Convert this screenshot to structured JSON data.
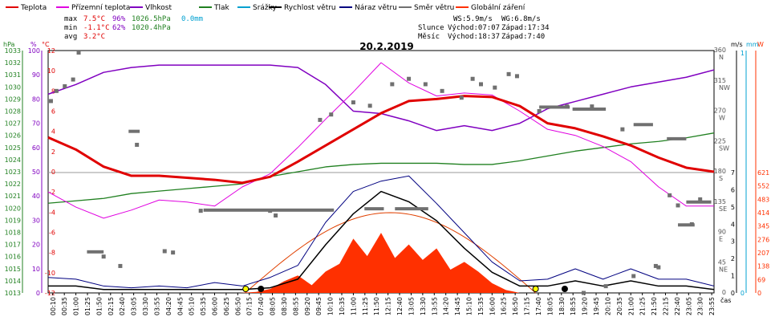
{
  "chart_data": {
    "type": "line",
    "title": "20.2.2019",
    "legend": [
      {
        "name": "Teplota",
        "color": "#e00000"
      },
      {
        "name": "Přízemní teplota",
        "color": "#e000e0"
      },
      {
        "name": "Vlhkost",
        "color": "#8000c0"
      },
      {
        "name": "Tlak",
        "color": "#208020"
      },
      {
        "name": "Srážky",
        "color": "#00a0d0"
      },
      {
        "name": "Rychlost větru",
        "color": "#000000"
      },
      {
        "name": "Náraz větru",
        "color": "#000080"
      },
      {
        "name": "Směr větru",
        "color": "#707070"
      },
      {
        "name": "Globální záření",
        "color": "#ff3000"
      }
    ],
    "stats": {
      "max_label": "max",
      "max_temp": "7.5°C",
      "max_hum": "96%",
      "max_press": "1026.5hPa",
      "max_rain": "0.0mm",
      "min_label": "min",
      "min_temp": "-1.1°C",
      "min_hum": "62%",
      "min_press": "1020.4hPa",
      "avg_label": "avg",
      "avg_temp": "3.2°C"
    },
    "info": {
      "ws": "WS:5.9m/s",
      "wg": "WG:6.8m/s",
      "sun_label": "Slunce",
      "sun_rise": "Východ:07:07",
      "sun_set": "Západ:17:34",
      "moon_label": "Měsíc",
      "moon_rise": "Východ:18:37",
      "moon_set": "Západ:7:40"
    },
    "axes": {
      "hpa": {
        "unit": "hPa",
        "ticks": [
          1013,
          1014,
          1015,
          1016,
          1017,
          1018,
          1019,
          1020,
          1021,
          1022,
          1023,
          1024,
          1025,
          1026,
          1027,
          1028,
          1029,
          1030,
          1031,
          1032,
          1033
        ]
      },
      "pct": {
        "unit": "%",
        "ticks": [
          0,
          10,
          20,
          30,
          40,
          50,
          60,
          70,
          80,
          90,
          100
        ]
      },
      "temp": {
        "unit": "°C",
        "ticks": [
          -12,
          -10,
          -8,
          -6,
          -4,
          -2,
          0,
          2,
          4,
          6,
          8,
          10,
          12
        ]
      },
      "dir": {
        "ticks": [
          {
            "v": 360,
            "lab": "N"
          },
          {
            "v": 315,
            "lab": "NW"
          },
          {
            "v": 270,
            "lab": "W"
          },
          {
            "v": 225,
            "lab": "SW"
          },
          {
            "v": 180,
            "lab": "S"
          },
          {
            "v": 135,
            "lab": "SE"
          },
          {
            "v": 90,
            "lab": "E"
          },
          {
            "v": 45,
            "lab": "NE"
          },
          {
            "v": 0,
            "lab": ""
          }
        ]
      },
      "ms": {
        "unit": "m/s",
        "ticks": [
          0,
          1,
          2,
          3,
          4,
          5,
          6,
          7
        ]
      },
      "mm": {
        "unit": "mm",
        "ticks": [
          0,
          1
        ]
      },
      "wm2": {
        "unit": "W",
        "ticks": [
          0,
          69,
          138,
          207,
          276,
          345,
          414,
          483,
          552,
          621
        ]
      },
      "time_unit": "čas",
      "xlabels": [
        "00:10",
        "00:35",
        "01:00",
        "01:25",
        "01:50",
        "02:15",
        "02:40",
        "03:05",
        "03:30",
        "03:55",
        "04:20",
        "04:45",
        "05:10",
        "05:35",
        "06:00",
        "06:25",
        "06:50",
        "07:15",
        "07:40",
        "08:05",
        "08:30",
        "08:55",
        "09:20",
        "09:45",
        "10:10",
        "10:35",
        "11:00",
        "11:25",
        "11:50",
        "12:15",
        "12:40",
        "13:05",
        "13:30",
        "13:55",
        "14:20",
        "14:45",
        "15:10",
        "15:35",
        "16:00",
        "16:25",
        "16:50",
        "17:15",
        "17:40",
        "18:05",
        "18:30",
        "18:55",
        "19:20",
        "19:45",
        "20:10",
        "20:35",
        "21:00",
        "21:25",
        "21:50",
        "22:15",
        "22:40",
        "23:05",
        "23:30",
        "23:55"
      ]
    },
    "series": [
      {
        "name": "Teplota",
        "unit": "°C",
        "x": [
          0,
          1,
          2,
          3,
          4,
          5,
          6,
          7,
          8,
          9,
          10,
          11,
          12,
          13,
          14,
          15,
          16,
          17,
          18,
          19,
          20,
          21,
          22,
          23,
          24
        ],
        "y": [
          3.4,
          2.2,
          0.5,
          -0.4,
          -0.4,
          -0.6,
          -0.8,
          -1.1,
          -0.5,
          1.0,
          2.6,
          4.2,
          5.8,
          7.0,
          7.2,
          7.5,
          7.4,
          6.5,
          4.8,
          4.3,
          3.5,
          2.6,
          1.4,
          0.4,
          0.0
        ]
      },
      {
        "name": "Přízemní teplota",
        "unit": "°C",
        "x": [
          0,
          1,
          2,
          3,
          4,
          5,
          6,
          7,
          8,
          9,
          10,
          11,
          12,
          13,
          14,
          15,
          16,
          17,
          18,
          19,
          20,
          21,
          22,
          23,
          24
        ],
        "y": [
          -2.0,
          -3.5,
          -4.6,
          -3.8,
          -2.8,
          -3.0,
          -3.4,
          -1.5,
          -0.2,
          2.4,
          5.2,
          7.9,
          10.8,
          8.8,
          7.5,
          7.8,
          7.6,
          6.0,
          4.2,
          3.6,
          2.5,
          1.0,
          -1.5,
          -3.4,
          -3.4
        ]
      },
      {
        "name": "Vlhkost",
        "unit": "%",
        "x": [
          0,
          1,
          2,
          3,
          4,
          5,
          6,
          7,
          8,
          9,
          10,
          11,
          12,
          13,
          14,
          15,
          16,
          17,
          18,
          19,
          20,
          21,
          22,
          23,
          24
        ],
        "y": [
          82,
          86,
          91,
          93,
          94,
          94,
          94,
          94,
          94,
          93,
          86,
          75,
          74,
          71,
          67,
          69,
          67,
          70,
          76,
          79,
          82,
          85,
          87,
          89,
          92
        ]
      },
      {
        "name": "Tlak",
        "unit": "hPa",
        "x": [
          0,
          1,
          2,
          3,
          4,
          5,
          6,
          7,
          8,
          9,
          10,
          11,
          12,
          13,
          14,
          15,
          16,
          17,
          18,
          19,
          20,
          21,
          22,
          23,
          24
        ],
        "y": [
          1020.4,
          1020.6,
          1020.8,
          1021.2,
          1021.4,
          1021.6,
          1021.8,
          1022.0,
          1022.6,
          1023.0,
          1023.4,
          1023.6,
          1023.7,
          1023.7,
          1023.7,
          1023.6,
          1023.6,
          1023.9,
          1024.3,
          1024.7,
          1025.0,
          1025.3,
          1025.5,
          1025.8,
          1026.2
        ]
      },
      {
        "name": "Globální záření",
        "unit": "W/m2",
        "x": [
          6.9,
          7.5,
          8,
          8.5,
          9,
          9.5,
          10,
          10.5,
          11,
          11.5,
          12,
          12.5,
          13,
          13.5,
          14,
          14.5,
          15,
          15.5,
          16,
          16.5,
          17
        ],
        "y": [
          0,
          5,
          20,
          60,
          90,
          40,
          110,
          150,
          280,
          190,
          310,
          180,
          250,
          170,
          230,
          120,
          160,
          110,
          50,
          15,
          0
        ]
      },
      {
        "name": "Náraz větru",
        "unit": "m/s",
        "x": [
          0,
          1,
          2,
          3,
          4,
          5,
          6,
          7,
          8,
          9,
          10,
          11,
          12,
          13,
          14,
          15,
          16,
          17,
          18,
          19,
          20,
          21,
          22,
          23,
          24
        ],
        "y": [
          0.9,
          0.8,
          0.4,
          0.3,
          0.4,
          0.3,
          0.6,
          0.4,
          0.9,
          1.6,
          4.1,
          5.9,
          6.5,
          6.8,
          5.2,
          3.5,
          1.8,
          0.7,
          0.8,
          1.4,
          0.8,
          1.4,
          0.8,
          0.8,
          0.4
        ]
      },
      {
        "name": "Rychlost větru",
        "unit": "m/s",
        "x": [
          0,
          1,
          2,
          3,
          4,
          5,
          6,
          7,
          8,
          9,
          10,
          11,
          12,
          13,
          14,
          15,
          16,
          17,
          18,
          19,
          20,
          21,
          22,
          23,
          24
        ],
        "y": [
          0.4,
          0.4,
          0.2,
          0.2,
          0.2,
          0.2,
          0.2,
          0.2,
          0.3,
          0.8,
          2.8,
          4.6,
          5.9,
          5.3,
          4.2,
          2.6,
          1.2,
          0.4,
          0.4,
          0.7,
          0.4,
          0.7,
          0.4,
          0.4,
          0.2
        ]
      }
    ],
    "wind_dir_points": [
      {
        "x": 0.1,
        "y": 285
      },
      {
        "x": 0.3,
        "y": 300
      },
      {
        "x": 0.6,
        "y": 307
      },
      {
        "x": 0.9,
        "y": 317
      },
      {
        "x": 1.1,
        "y": 357
      },
      {
        "x": 2.0,
        "y": 54
      },
      {
        "x": 2.6,
        "y": 40
      },
      {
        "x": 3.2,
        "y": 220
      },
      {
        "x": 4.2,
        "y": 62
      },
      {
        "x": 4.5,
        "y": 60
      },
      {
        "x": 5.5,
        "y": 122
      },
      {
        "x": 8.0,
        "y": 122
      },
      {
        "x": 8.2,
        "y": 115
      },
      {
        "x": 9.8,
        "y": 257
      },
      {
        "x": 10.2,
        "y": 265
      },
      {
        "x": 11.0,
        "y": 283
      },
      {
        "x": 11.6,
        "y": 278
      },
      {
        "x": 12.4,
        "y": 310
      },
      {
        "x": 13.0,
        "y": 318
      },
      {
        "x": 13.6,
        "y": 310
      },
      {
        "x": 14.2,
        "y": 300
      },
      {
        "x": 14.9,
        "y": 290
      },
      {
        "x": 15.3,
        "y": 318
      },
      {
        "x": 15.6,
        "y": 310
      },
      {
        "x": 16.1,
        "y": 305
      },
      {
        "x": 16.6,
        "y": 325
      },
      {
        "x": 16.9,
        "y": 322
      },
      {
        "x": 17.7,
        "y": 270
      },
      {
        "x": 18.7,
        "y": 277
      },
      {
        "x": 19.6,
        "y": 277
      },
      {
        "x": 20.7,
        "y": 243
      },
      {
        "x": 22.4,
        "y": 145
      },
      {
        "x": 22.7,
        "y": 130
      },
      {
        "x": 23.5,
        "y": 139
      },
      {
        "x": 21.1,
        "y": 25
      },
      {
        "x": 22.0,
        "y": 38
      },
      {
        "x": 23.2,
        "y": 102
      },
      {
        "x": 21.9,
        "y": 40
      },
      {
        "x": 19.3,
        "y": 0
      },
      {
        "x": 20.1,
        "y": 10
      }
    ],
    "wind_dir_bars": [
      {
        "x0": 1.4,
        "x1": 2.0,
        "y": 61
      },
      {
        "x0": 2.9,
        "x1": 3.3,
        "y": 240
      },
      {
        "x0": 5.6,
        "x1": 10.3,
        "y": 123
      },
      {
        "x0": 11.4,
        "x1": 12.1,
        "y": 125
      },
      {
        "x0": 12.5,
        "x1": 13.7,
        "y": 125
      },
      {
        "x0": 17.7,
        "x1": 18.8,
        "y": 276
      },
      {
        "x0": 18.9,
        "x1": 20.1,
        "y": 273
      },
      {
        "x0": 21.1,
        "x1": 21.8,
        "y": 250
      },
      {
        "x0": 22.3,
        "x1": 23.0,
        "y": 229
      },
      {
        "x0": 22.7,
        "x1": 23.3,
        "y": 101
      },
      {
        "x0": 23.0,
        "x1": 23.9,
        "y": 135
      }
    ],
    "ylim_temp": [
      -12,
      12
    ],
    "grid": false,
    "legend_placement": "top"
  }
}
